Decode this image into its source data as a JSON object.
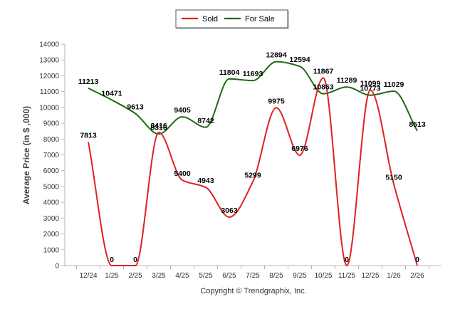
{
  "chart_data": {
    "type": "line",
    "title": "",
    "ylabel": "Average Price (in $ ,000)",
    "xlabel": "",
    "ylim": [
      0,
      14000
    ],
    "yticks": [
      0,
      1000,
      2000,
      3000,
      4000,
      5000,
      6000,
      7000,
      8000,
      9000,
      10000,
      11000,
      12000,
      13000,
      14000
    ],
    "categories": [
      "12/24",
      "1/25",
      "2/25",
      "3/25",
      "4/25",
      "5/25",
      "6/25",
      "7/25",
      "8/25",
      "9/25",
      "10/25",
      "11/25",
      "12/25",
      "1/26",
      "2/26"
    ],
    "legend_position": "top-center",
    "grid": false,
    "series": [
      {
        "name": "Sold",
        "color": "#e02020",
        "values": [
          7813,
          0,
          0,
          8416,
          5400,
          4943,
          3063,
          5299,
          9975,
          6976,
          11867,
          0,
          11099,
          5150,
          0
        ]
      },
      {
        "name": "For Sale",
        "color": "#1e6b10",
        "values": [
          11213,
          10471,
          9613,
          8316,
          9405,
          8742,
          11804,
          11693,
          12894,
          12594,
          10863,
          11289,
          10773,
          11029,
          8513
        ]
      }
    ],
    "footer": "Copyright © Trendgraphix, Inc."
  }
}
